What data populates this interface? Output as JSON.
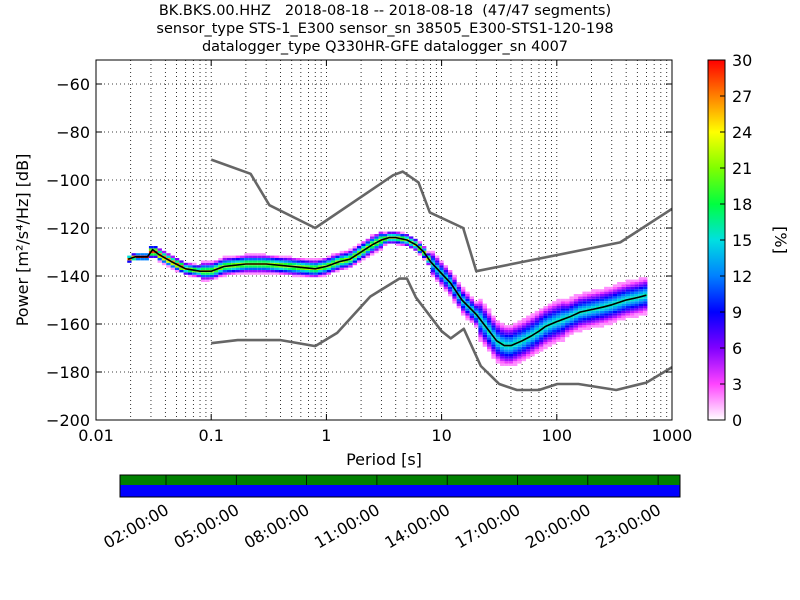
{
  "header": {
    "title_lines": [
      "BK.BKS.00.HHZ   2018-08-18 -- 2018-08-18  (47/47 segments)",
      "sensor_type STS-1_E300 sensor_sn 38505_E300-STS1-120-198",
      "datalogger_type Q330HR-GFE datalogger_sn 4007"
    ]
  },
  "chart_data": [
    {
      "type": "heatmap",
      "title": "BK.BKS.00.HHZ   2018-08-18 -- 2018-08-18  (47/47 segments)",
      "xlabel": "Period [s]",
      "ylabel": "Power [m²/s⁴/Hz] [dB]",
      "x_scale": "log",
      "xlim": [
        0.01,
        1000
      ],
      "ylim": [
        -200,
        -50
      ],
      "x_ticks": [
        "0.01",
        "0.1",
        "1",
        "10",
        "100",
        "1000"
      ],
      "y_ticks": [
        "−200",
        "−180",
        "−160",
        "−140",
        "−120",
        "−100",
        "−80",
        "−60"
      ],
      "grid": true,
      "colorbar": {
        "label": "[%]",
        "range": [
          0,
          30
        ],
        "ticks": [
          "0",
          "3",
          "6",
          "9",
          "12",
          "15",
          "18",
          "21",
          "24",
          "27",
          "30"
        ]
      },
      "series": [
        {
          "name": "",
          "style": "mean",
          "color": "#000000",
          "x": [
            0.019,
            0.022,
            0.028,
            0.031,
            0.035,
            0.045,
            0.06,
            0.08,
            0.1,
            0.13,
            0.2,
            0.3,
            0.5,
            0.8,
            1.0,
            1.3,
            1.6,
            2.0,
            2.5,
            3.0,
            3.5,
            4.0,
            5.0,
            6.0,
            7.0,
            8.0,
            10.0,
            12.0,
            15.0,
            20.0,
            25.0,
            30.0,
            35.0,
            40.0,
            50.0,
            60.0,
            70.0,
            80.0,
            100.0,
            130.0,
            160.0,
            200.0,
            250.0,
            300.0,
            400.0,
            500.0,
            600.0
          ],
          "y": [
            -133,
            -132,
            -132,
            -129,
            -131,
            -134,
            -137,
            -138,
            -138,
            -136,
            -135,
            -135,
            -136,
            -137,
            -136,
            -134,
            -133,
            -130,
            -127,
            -125,
            -124,
            -124,
            -125,
            -127,
            -130,
            -134,
            -139,
            -143,
            -150,
            -156,
            -162,
            -167,
            -169,
            -169,
            -167,
            -165,
            -163,
            -161,
            -159,
            -157,
            -155,
            -154,
            -153,
            -152,
            -150,
            -149,
            -148
          ]
        },
        {
          "name": "",
          "style": "noise-model-upper",
          "color": "#666666",
          "x": [
            0.1,
            0.22,
            0.32,
            0.8,
            3.8,
            4.6,
            6.3,
            7.9,
            15.4,
            20.0,
            354.8,
            1000.0
          ],
          "y": [
            -91.5,
            -97.4,
            -110.5,
            -120.0,
            -98.0,
            -96.5,
            -101.0,
            -113.5,
            -120.0,
            -138.0,
            -126.0,
            -112.0
          ]
        },
        {
          "name": "",
          "style": "noise-model-lower",
          "color": "#666666",
          "x": [
            0.1,
            0.17,
            0.4,
            0.8,
            1.24,
            2.4,
            4.3,
            5.0,
            6.0,
            10.0,
            12.0,
            15.6,
            21.9,
            31.6,
            45.0,
            70.0,
            101.0,
            154.0,
            328.0,
            600.0,
            1000.0
          ],
          "y": [
            -168.0,
            -166.7,
            -166.7,
            -169.2,
            -163.7,
            -148.6,
            -141.1,
            -141.1,
            -149.0,
            -163.0,
            -166.0,
            -162.0,
            -177.5,
            -185.0,
            -187.5,
            -187.5,
            -185.0,
            -185.0,
            -187.5,
            -184.4,
            -178.0
          ]
        }
      ]
    },
    {
      "type": "heatmap",
      "title": "",
      "xlabel": "",
      "ylabel": "",
      "x_ticks": [
        "02:00:00",
        "05:00:00",
        "08:00:00",
        "11:00:00",
        "14:00:00",
        "17:00:00",
        "20:00:00",
        "23:00:00"
      ],
      "rows": [
        {
          "name": "",
          "color": "#008000"
        },
        {
          "name": "",
          "color": "#0000ff"
        }
      ]
    }
  ]
}
